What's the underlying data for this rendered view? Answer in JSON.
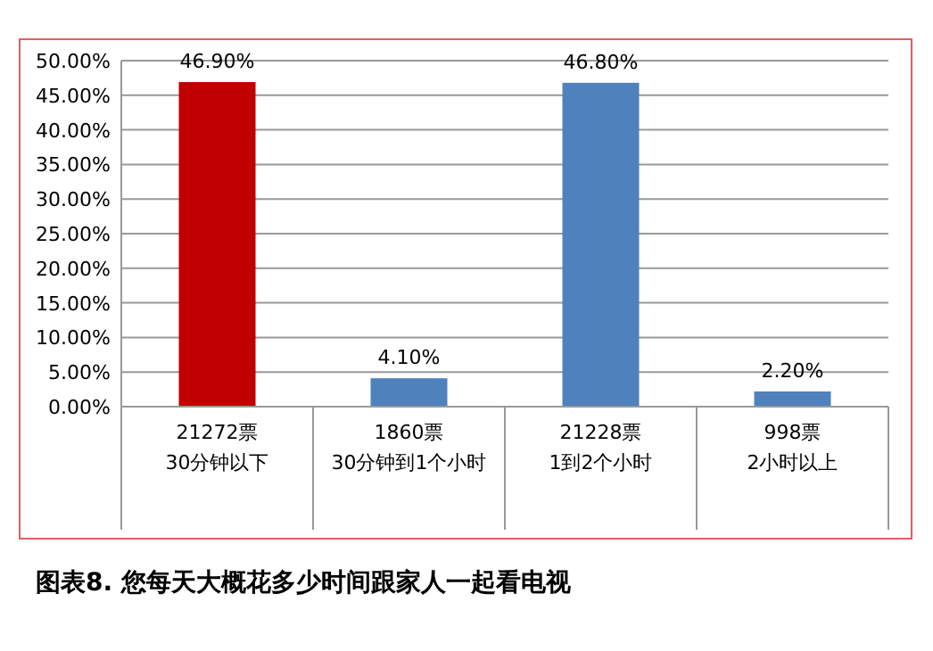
{
  "chart_data": {
    "type": "bar",
    "title": "图表8. 您每天大概花多少时间跟家人一起看电视",
    "categories": [
      "21272票\n30分钟以下",
      "1860票\n30分钟到1个小时",
      "21228票\n1到2个小时",
      "998票\n2小时以上"
    ],
    "values": [
      46.9,
      4.1,
      46.8,
      2.2
    ],
    "colors": [
      "#c00000",
      "#4f81bd",
      "#4f81bd",
      "#4f81bd"
    ],
    "value_labels": [
      "46.90%",
      "4.10%",
      "46.80%",
      "2.20%"
    ],
    "ylim": [
      0,
      50
    ],
    "yticks": [
      {
        "value": 0,
        "label": "0.00%"
      },
      {
        "value": 5,
        "label": "5.00%"
      },
      {
        "value": 10,
        "label": "10.00%"
      },
      {
        "value": 15,
        "label": "15.00%"
      },
      {
        "value": 20,
        "label": "20.00%"
      },
      {
        "value": 25,
        "label": "25.00%"
      },
      {
        "value": 30,
        "label": "30.00%"
      },
      {
        "value": 35,
        "label": "35.00%"
      },
      {
        "value": 40,
        "label": "40.00%"
      },
      {
        "value": 45,
        "label": "45.00%"
      },
      {
        "value": 50,
        "label": "50.00%"
      }
    ],
    "grid": "y"
  }
}
